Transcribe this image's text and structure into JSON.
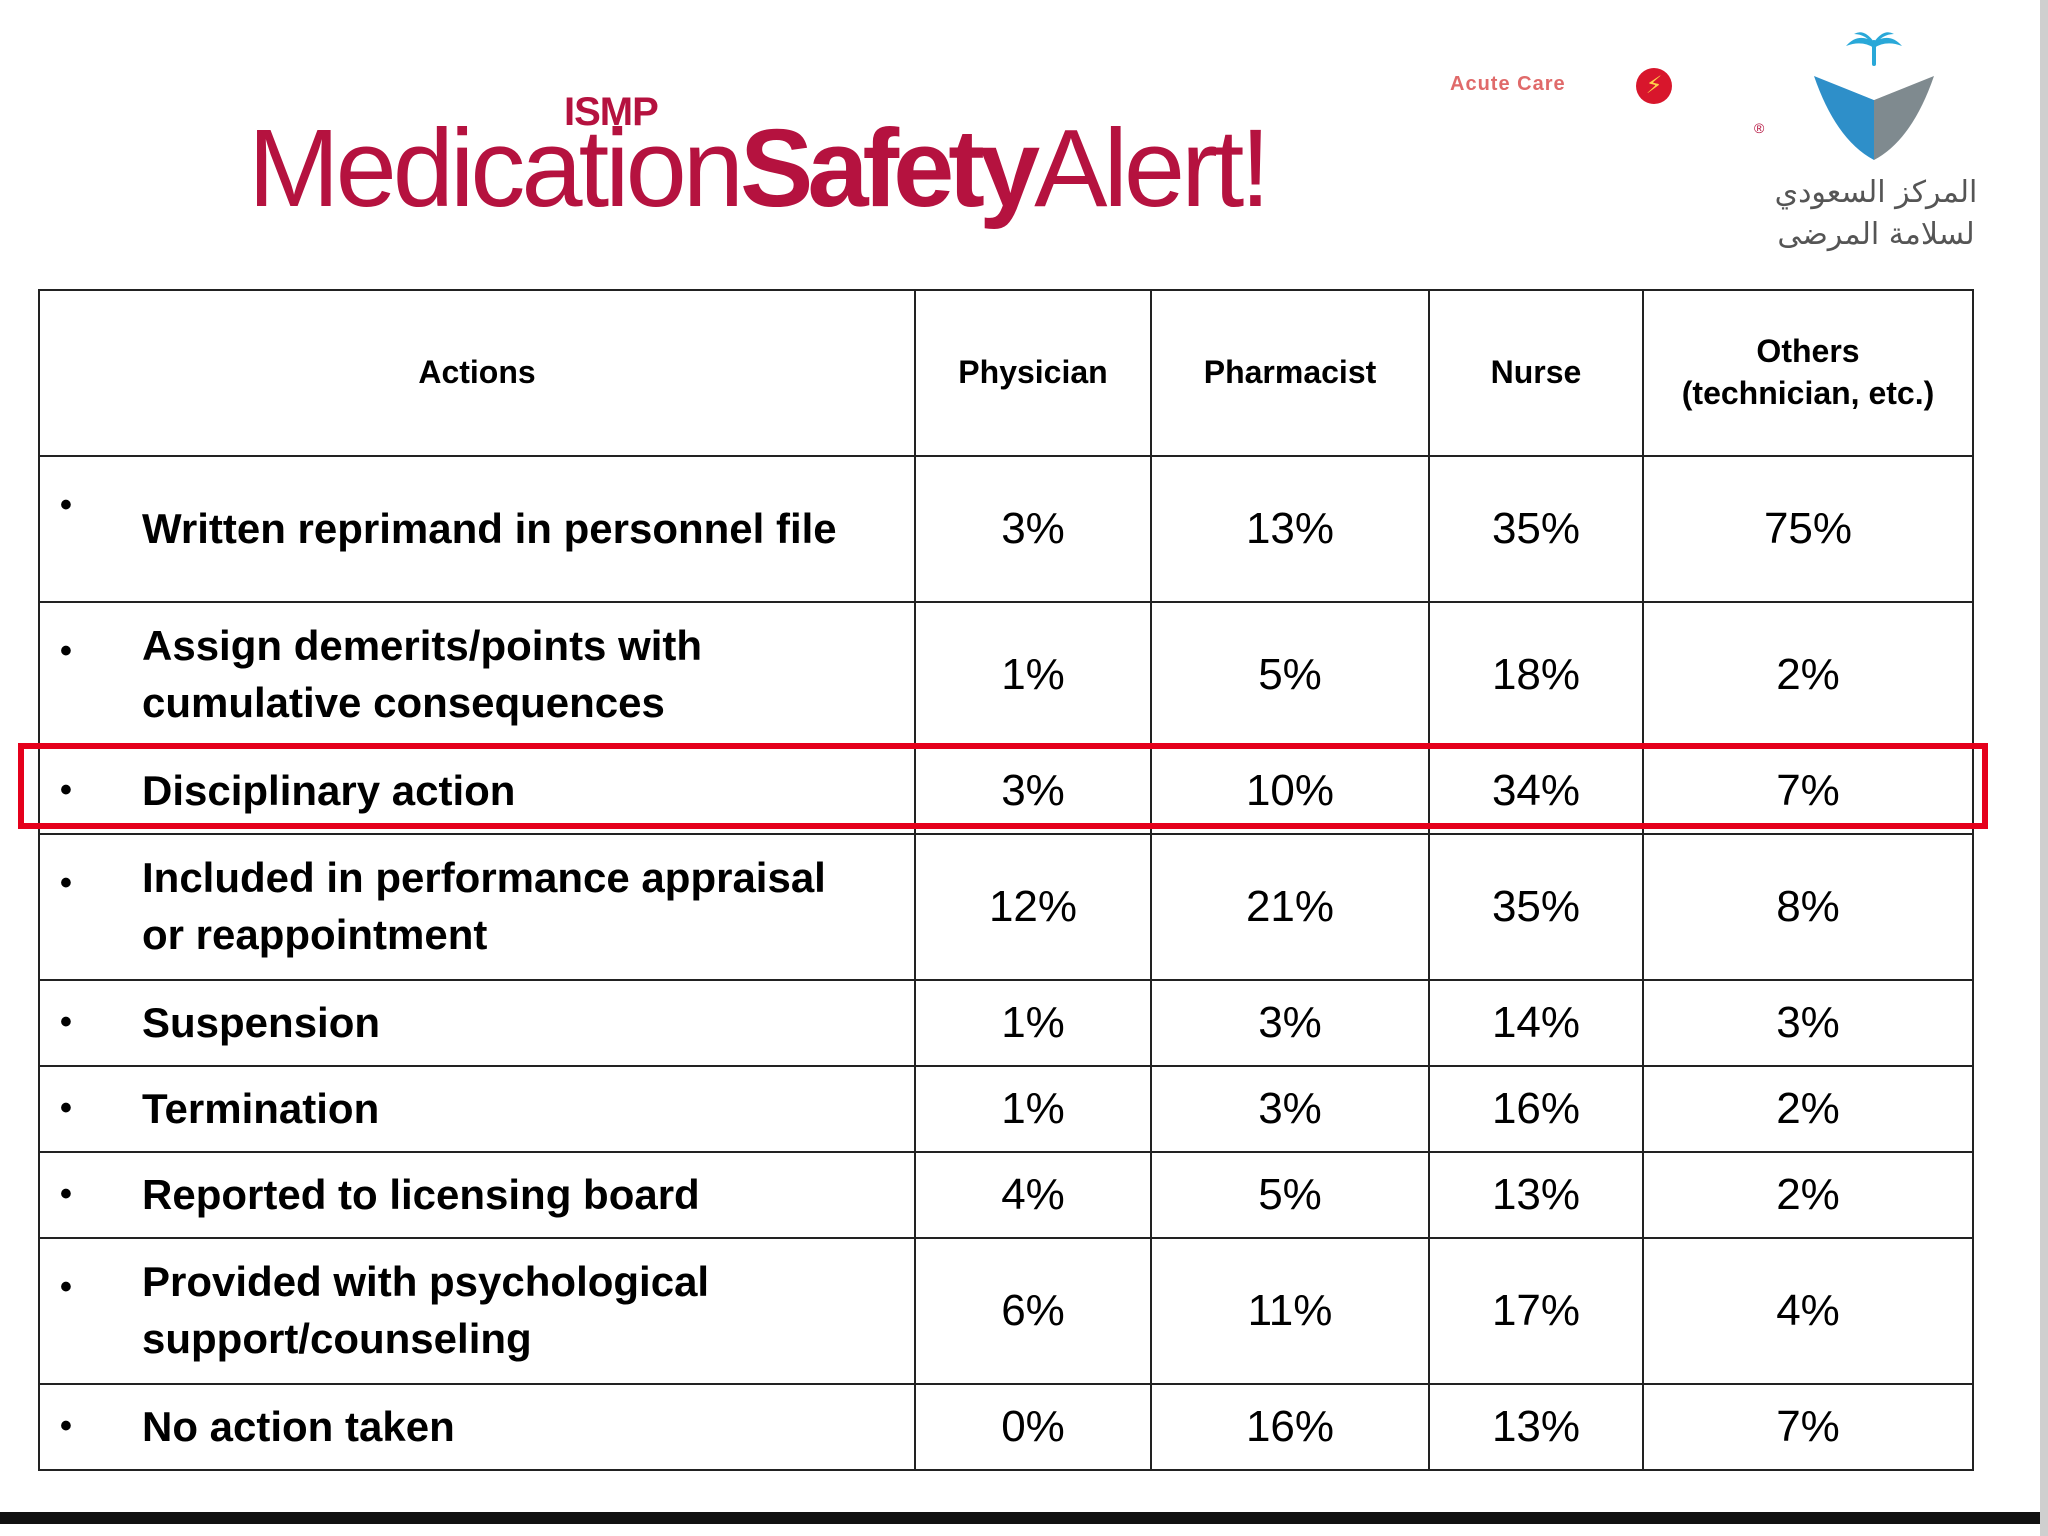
{
  "banner": {
    "ismp": "ISMP",
    "acute_care": "Acute Care",
    "title_word_1": "Medication",
    "title_word_2": "Safety",
    "title_word_3": "Alert!",
    "trademark": "®",
    "brand_color": "#b5123f"
  },
  "logo": {
    "line1": "المركز السعودي",
    "line2": "لسلامة المرضى",
    "icon": "saudi-patient-safety-center-emblem"
  },
  "table": {
    "headers": [
      "Actions",
      "Physician",
      "Pharmacist",
      "Nurse",
      "Others\n(technician, etc.)"
    ],
    "header_others_line1": "Others",
    "header_others_line2": "(technician, etc.)",
    "rows": [
      {
        "action": "Written reprimand in personnel file",
        "physician": "3%",
        "pharmacist": "13%",
        "nurse": "35%",
        "others": "75%"
      },
      {
        "action": "Assign demerits/points with cumulative consequences",
        "physician": "1%",
        "pharmacist": "5%",
        "nurse": "18%",
        "others": "2%"
      },
      {
        "action": "Disciplinary action",
        "physician": "3%",
        "pharmacist": "10%",
        "nurse": "34%",
        "others": "7%"
      },
      {
        "action": "Included in performance appraisal or reappointment",
        "physician": "12%",
        "pharmacist": "21%",
        "nurse": "35%",
        "others": "8%"
      },
      {
        "action": "Suspension",
        "physician": "1%",
        "pharmacist": "3%",
        "nurse": "14%",
        "others": "3%"
      },
      {
        "action": "Termination",
        "physician": "1%",
        "pharmacist": "3%",
        "nurse": "16%",
        "others": "2%"
      },
      {
        "action": "Reported to licensing board",
        "physician": "4%",
        "pharmacist": "5%",
        "nurse": "13%",
        "others": "2%"
      },
      {
        "action": "Provided with psychological support/counseling",
        "physician": "6%",
        "pharmacist": "11%",
        "nurse": "17%",
        "others": "4%"
      },
      {
        "action": "No action taken",
        "physician": "0%",
        "pharmacist": "16%",
        "nurse": "13%",
        "others": "7%"
      }
    ],
    "bullet": "•",
    "highlight_color": "#e5001c"
  }
}
